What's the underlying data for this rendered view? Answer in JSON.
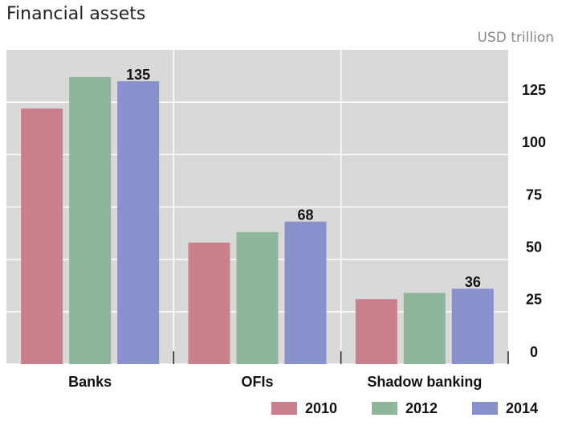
{
  "chart_data": {
    "type": "bar",
    "title": "Financial assets",
    "unit": "USD trillion",
    "categories": [
      "Banks",
      "OFIs",
      "Shadow banking"
    ],
    "series": [
      {
        "name": "2010",
        "color": "#c97f8c",
        "values": [
          122,
          58,
          31
        ]
      },
      {
        "name": "2012",
        "color": "#8fb59b",
        "values": [
          137,
          63,
          34
        ]
      },
      {
        "name": "2014",
        "color": "#8891cc",
        "values": [
          135,
          68,
          36
        ],
        "data_labels": true
      }
    ],
    "ylim": [
      0,
      150
    ],
    "yticks": [
      0,
      25,
      50,
      75,
      100,
      125
    ],
    "grid": true,
    "y_axis_side": "right",
    "legend": "bottom-right"
  }
}
